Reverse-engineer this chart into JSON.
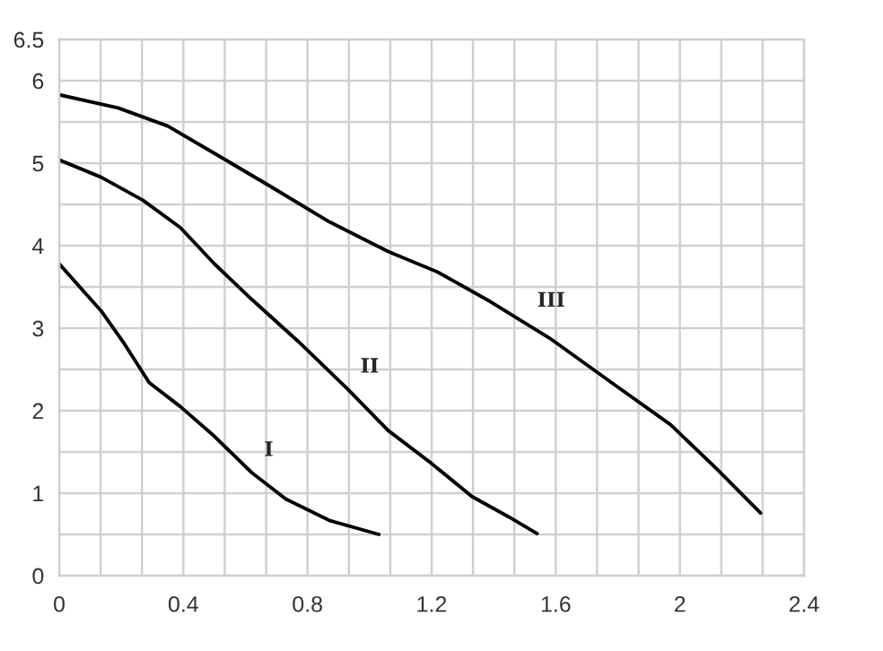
{
  "chart_data": {
    "type": "line",
    "xlim": [
      0,
      2.4
    ],
    "xticks": [
      0,
      {
        "value": 0.1333,
        "label": null
      },
      {
        "value": 0.2667,
        "label": null
      },
      0.4,
      {
        "value": 0.5333,
        "label": null
      },
      {
        "value": 0.6667,
        "label": null
      },
      0.8,
      {
        "value": 0.9333,
        "label": null
      },
      {
        "value": 1.0667,
        "label": null
      },
      1.2,
      {
        "value": 1.3333,
        "label": null
      },
      {
        "value": 1.4667,
        "label": null
      },
      1.6,
      {
        "value": 1.7333,
        "label": null
      },
      {
        "value": 1.8667,
        "label": null
      },
      2,
      {
        "value": 2.1333,
        "label": null
      },
      {
        "value": 2.2667,
        "label": null
      },
      2.4
    ],
    "ylim": [
      0,
      6.5
    ],
    "yticks": [
      0,
      {
        "value": 0.5,
        "label": null
      },
      1,
      {
        "value": 1.5,
        "label": null
      },
      2,
      {
        "value": 2.5,
        "label": null
      },
      3,
      {
        "value": 3.5,
        "label": null
      },
      4,
      {
        "value": 4.5,
        "label": null
      },
      5,
      {
        "value": 5.5,
        "label": null
      },
      6,
      6.5
    ],
    "grid": true,
    "series": [
      {
        "color": "#000000",
        "x": [
          0,
          0.135,
          0.21,
          0.29,
          0.39,
          0.5,
          0.62,
          0.73,
          0.87,
          1.03
        ],
        "values": [
          3.78,
          3.21,
          2.81,
          2.34,
          2.05,
          1.69,
          1.25,
          0.93,
          0.67,
          0.5
        ]
      },
      {
        "color": "#000000",
        "x": [
          0,
          0.135,
          0.27,
          0.39,
          0.5,
          0.62,
          0.77,
          0.93,
          1.06,
          1.2,
          1.33,
          1.45,
          1.54
        ],
        "values": [
          5.04,
          4.83,
          4.55,
          4.22,
          3.78,
          3.35,
          2.84,
          2.26,
          1.76,
          1.36,
          0.96,
          0.71,
          0.51
        ]
      },
      {
        "color": "#000000",
        "x": [
          0,
          0.19,
          0.35,
          0.5,
          0.68,
          0.87,
          1.06,
          1.22,
          1.39,
          1.58,
          1.78,
          1.97,
          2.12,
          2.26
        ],
        "values": [
          5.83,
          5.67,
          5.45,
          5.12,
          4.72,
          4.29,
          3.93,
          3.68,
          3.32,
          2.88,
          2.34,
          1.83,
          1.29,
          0.76
        ]
      }
    ],
    "annotations": [
      {
        "text": "I",
        "x": 0.62,
        "y": 1.25
      },
      {
        "text": "II",
        "x": 0.93,
        "y": 2.26
      },
      {
        "text": "III",
        "x": 1.5,
        "y": 3.06
      }
    ]
  }
}
